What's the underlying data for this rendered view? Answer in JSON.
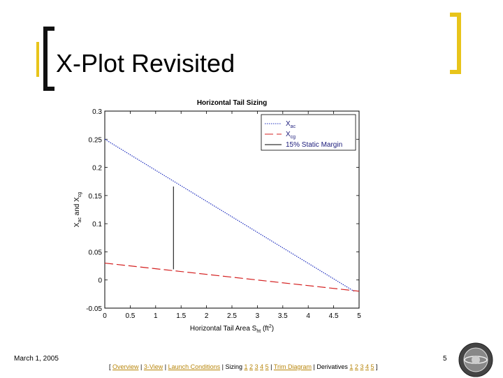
{
  "slide": {
    "title": "X-Plot Revisited",
    "date": "March 1, 2005",
    "page_number": "5"
  },
  "nav": {
    "open": "[ ",
    "overview": "Overview",
    "three_view": "3-View",
    "launch": "Launch Conditions",
    "sizing_label": "Sizing",
    "sizing_pages": [
      "1",
      "2",
      "3",
      "4",
      "5"
    ],
    "trim": "Trim Diagram",
    "derivatives_label": "Derivatives",
    "derivative_pages": [
      "1",
      "2",
      "3",
      "4",
      "5"
    ],
    "close": " ]",
    "sep": " | "
  },
  "colors": {
    "bracket_dark": "#111111",
    "bracket_gold": "#e8c41a",
    "x_ac": "#1f2fbf",
    "x_cg": "#d42020",
    "static_margin": "#000000",
    "link": "#b8860b"
  },
  "chart_data": {
    "type": "line",
    "title": "Horizontal Tail Sizing",
    "xlabel": "Horizontal Tail Area S_ht (ft^2)",
    "ylabel": "X_ac and X_cg",
    "xlim": [
      0,
      5
    ],
    "ylim": [
      -0.05,
      0.3
    ],
    "x_ticks": [
      0,
      0.5,
      1,
      1.5,
      2,
      2.5,
      3,
      3.5,
      4,
      4.5,
      5
    ],
    "x_tick_labels": [
      "0",
      "0.5",
      "1",
      "1.5",
      "2",
      "2.5",
      "3",
      "3.5",
      "4",
      "4.5",
      "5"
    ],
    "y_ticks": [
      -0.05,
      0,
      0.05,
      0.1,
      0.15,
      0.2,
      0.25,
      0.3
    ],
    "y_tick_labels": [
      "-0.05",
      "0",
      "0.05",
      "0.1",
      "0.15",
      "0.2",
      "0.25",
      "0.3"
    ],
    "grid": false,
    "legend_position": "top-right",
    "series": [
      {
        "name": "X_ac",
        "legend_main": "X",
        "legend_sub": "ac",
        "color": "#1f2fbf",
        "dash": "1.5 1.5",
        "x": [
          0,
          4.9
        ],
        "y": [
          0.25,
          -0.02
        ]
      },
      {
        "name": "X_cg",
        "legend_main": "X",
        "legend_sub": "cg",
        "color": "#d42020",
        "dash": "12 5",
        "x": [
          0,
          5
        ],
        "y": [
          0.03,
          -0.02
        ]
      },
      {
        "name": "15% Static Margin",
        "legend_main": "15% Static Margin",
        "legend_sub": "",
        "color": "#000000",
        "dash": "",
        "x": [
          1.35,
          1.35
        ],
        "y": [
          0.019,
          0.166
        ]
      }
    ]
  }
}
